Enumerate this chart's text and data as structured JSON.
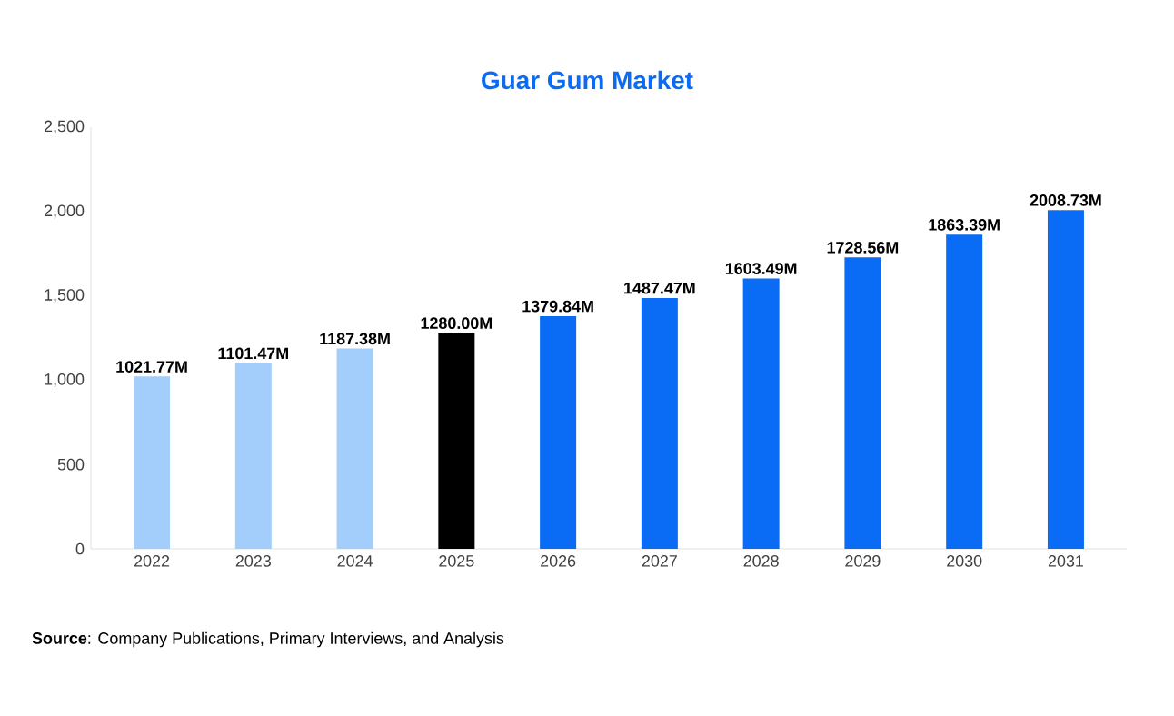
{
  "chart_data": {
    "type": "bar",
    "title": "Guar Gum Market",
    "categories": [
      "2022",
      "2023",
      "2024",
      "2025",
      "2026",
      "2027",
      "2028",
      "2029",
      "2030",
      "2031"
    ],
    "values": [
      1021.77,
      1101.47,
      1187.38,
      1280.0,
      1379.84,
      1487.47,
      1603.49,
      1728.56,
      1863.39,
      2008.73
    ],
    "value_labels": [
      "1021.77M",
      "1101.47M",
      "1187.38M",
      "1280.00M",
      "1379.84M",
      "1487.47M",
      "1603.49M",
      "1728.56M",
      "1863.39M",
      "2008.73M"
    ],
    "colors": [
      "#a3cdfa",
      "#a3cdfa",
      "#a3cdfa",
      "#000000",
      "#0a6cf5",
      "#0a6cf5",
      "#0a6cf5",
      "#0a6cf5",
      "#0a6cf5",
      "#0a6cf5"
    ],
    "ylim": [
      0,
      2500
    ],
    "yticks": [
      0,
      500,
      {
        "value": 1000,
        "label": "1,000"
      },
      {
        "value": 1500,
        "label": "1,500"
      },
      {
        "value": 2000,
        "label": "2,000"
      },
      {
        "value": 2500,
        "label": "2,500"
      }
    ],
    "annotations": [
      "**Source**: Company Publications, Primary Interviews, and Analysis"
    ]
  }
}
